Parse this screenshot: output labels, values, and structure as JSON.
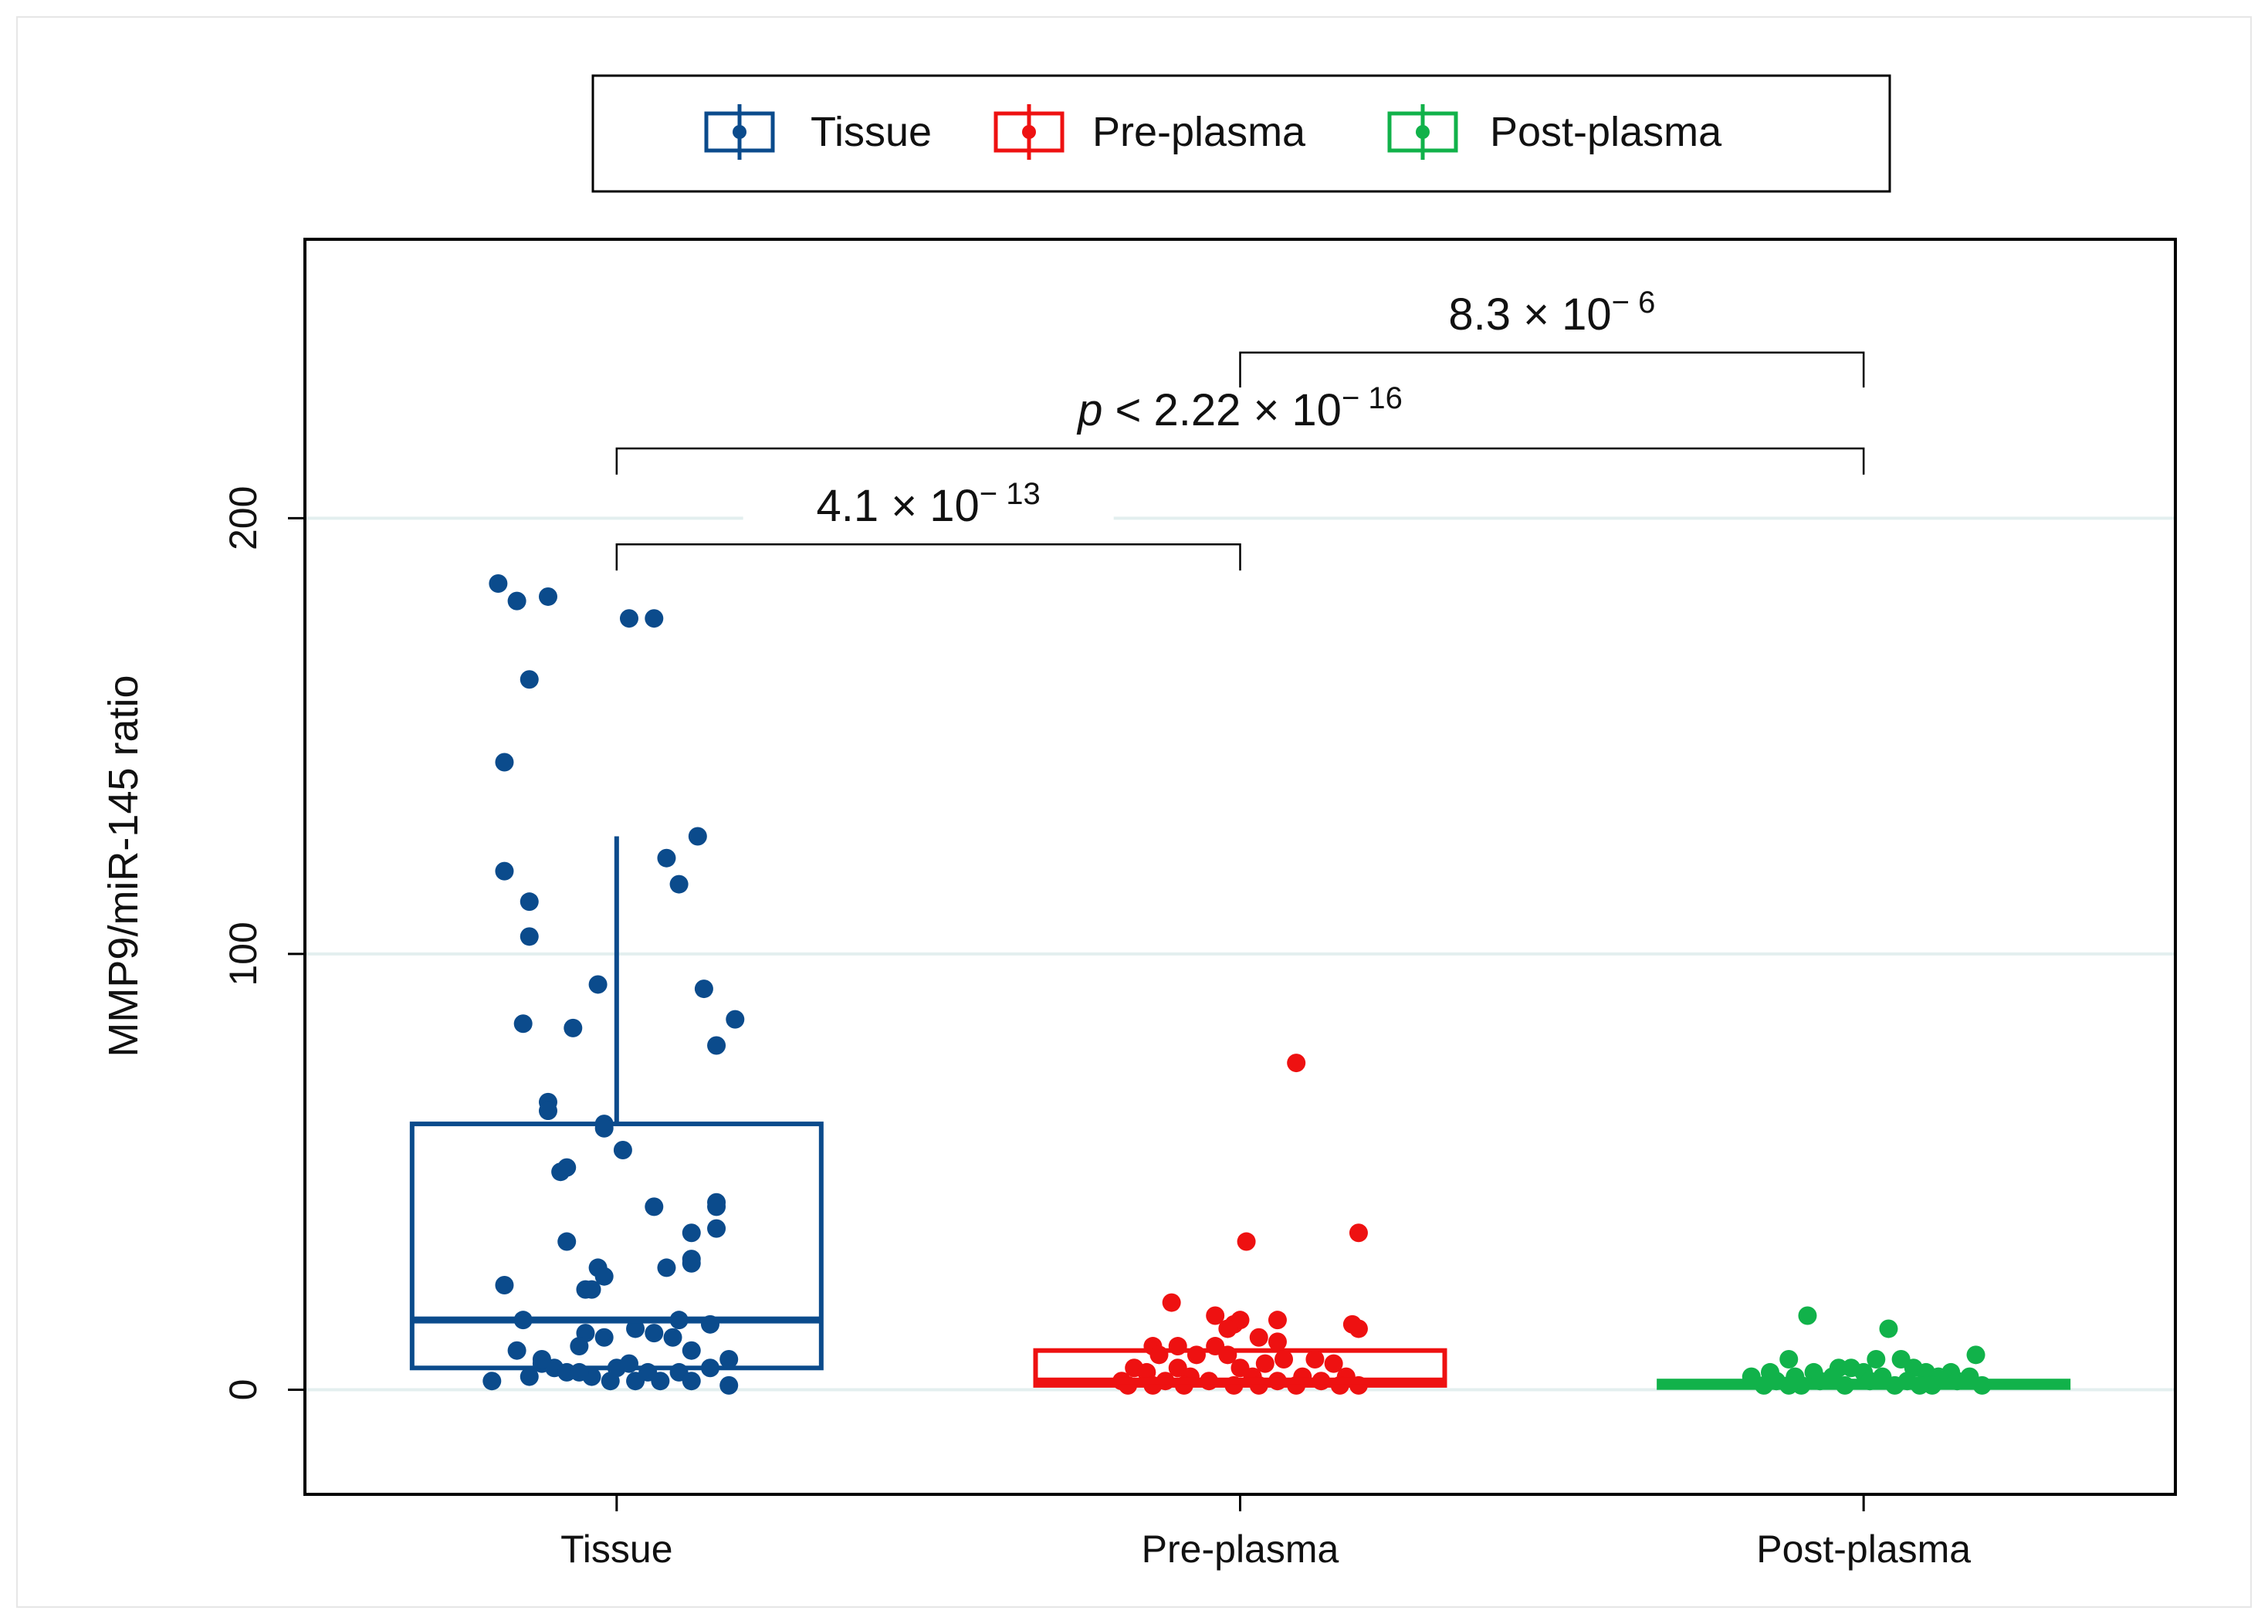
{
  "chart_data": {
    "type": "box",
    "title": "",
    "xlabel": "",
    "ylabel": "MMP9/miR-145 ratio",
    "ylim": [
      -24,
      264
    ],
    "yticks": [
      0,
      100,
      200
    ],
    "ytick_labels": [
      "0",
      "100",
      "200"
    ],
    "grid": true,
    "legend": {
      "placement": "top",
      "entries": [
        "Tissue",
        "Pre-plasma",
        "Post-plasma"
      ]
    },
    "colors": {
      "Tissue": "#0b4b8c",
      "Pre-plasma": "#ee1111",
      "Post-plasma": "#11b24a"
    },
    "categories": [
      "Tissue",
      "Pre-plasma",
      "Post-plasma"
    ],
    "series": [
      {
        "name": "Tissue",
        "box": {
          "whisker_low": 5,
          "q1": 5,
          "median": 16,
          "q3": 61,
          "whisker_high": 127
        },
        "points": [
          [
            -0.19,
            185
          ],
          [
            -0.16,
            181
          ],
          [
            -0.11,
            182
          ],
          [
            0.02,
            177
          ],
          [
            0.06,
            177
          ],
          [
            -0.14,
            163
          ],
          [
            -0.18,
            144
          ],
          [
            -0.18,
            119
          ],
          [
            -0.14,
            112
          ],
          [
            0.13,
            127
          ],
          [
            0.08,
            122
          ],
          [
            0.1,
            116
          ],
          [
            -0.14,
            104
          ],
          [
            -0.03,
            93
          ],
          [
            0.14,
            92
          ],
          [
            -0.15,
            84
          ],
          [
            -0.07,
            83
          ],
          [
            0.19,
            85
          ],
          [
            0.16,
            79
          ],
          [
            -0.11,
            66
          ],
          [
            -0.11,
            64
          ],
          [
            -0.02,
            61
          ],
          [
            -0.02,
            60
          ],
          [
            0.01,
            55
          ],
          [
            -0.08,
            51
          ],
          [
            -0.09,
            50
          ],
          [
            0.06,
            42
          ],
          [
            0.16,
            43
          ],
          [
            0.16,
            42
          ],
          [
            0.12,
            36
          ],
          [
            0.16,
            37
          ],
          [
            -0.08,
            34
          ],
          [
            0.12,
            30
          ],
          [
            0.12,
            29
          ],
          [
            0.08,
            28
          ],
          [
            -0.03,
            28
          ],
          [
            -0.02,
            26
          ],
          [
            -0.18,
            24
          ],
          [
            -0.05,
            23
          ],
          [
            -0.04,
            23
          ],
          [
            -0.15,
            16
          ],
          [
            0.1,
            16
          ],
          [
            0.15,
            15
          ],
          [
            0.03,
            14
          ],
          [
            0.06,
            13
          ],
          [
            -0.05,
            13
          ],
          [
            -0.02,
            12
          ],
          [
            0.09,
            12
          ],
          [
            -0.06,
            10
          ],
          [
            0.12,
            9
          ],
          [
            -0.16,
            9
          ],
          [
            -0.12,
            6
          ],
          [
            0.18,
            7
          ],
          [
            -0.1,
            5
          ],
          [
            -0.08,
            4
          ],
          [
            0.0,
            5
          ],
          [
            0.05,
            4
          ],
          [
            0.1,
            4
          ],
          [
            0.15,
            5
          ],
          [
            -0.14,
            3
          ],
          [
            -0.04,
            3
          ],
          [
            0.07,
            2
          ],
          [
            0.12,
            2
          ],
          [
            -0.2,
            2
          ],
          [
            -0.01,
            2
          ],
          [
            0.03,
            2
          ],
          [
            0.18,
            1
          ],
          [
            -0.12,
            7
          ],
          [
            0.02,
            6
          ],
          [
            -0.06,
            4
          ]
        ]
      },
      {
        "name": "Pre-plasma",
        "box": {
          "whisker_low": 0,
          "q1": 1,
          "median": 2,
          "q3": 9,
          "whisker_high": 9
        },
        "points": [
          [
            0.09,
            75
          ],
          [
            0.19,
            36
          ],
          [
            0.01,
            34
          ],
          [
            -0.11,
            20
          ],
          [
            -0.04,
            17
          ],
          [
            0.0,
            16
          ],
          [
            0.06,
            16
          ],
          [
            0.19,
            14
          ],
          [
            0.18,
            15
          ],
          [
            -0.01,
            15
          ],
          [
            -0.02,
            14
          ],
          [
            0.03,
            12
          ],
          [
            0.06,
            11
          ],
          [
            -0.14,
            10
          ],
          [
            -0.1,
            10
          ],
          [
            -0.04,
            10
          ],
          [
            -0.13,
            8
          ],
          [
            -0.07,
            8
          ],
          [
            -0.02,
            8
          ],
          [
            0.07,
            7
          ],
          [
            0.12,
            7
          ],
          [
            0.15,
            6
          ],
          [
            -0.17,
            5
          ],
          [
            -0.1,
            5
          ],
          [
            0.0,
            5
          ],
          [
            0.04,
            6
          ],
          [
            -0.15,
            4
          ],
          [
            -0.08,
            3
          ],
          [
            0.02,
            3
          ],
          [
            0.1,
            3
          ],
          [
            0.17,
            3
          ],
          [
            -0.19,
            2
          ],
          [
            -0.12,
            2
          ],
          [
            -0.05,
            2
          ],
          [
            0.06,
            2
          ],
          [
            0.13,
            2
          ],
          [
            -0.18,
            1
          ],
          [
            -0.09,
            1
          ],
          [
            -0.01,
            1
          ],
          [
            0.09,
            1
          ],
          [
            0.16,
            1
          ],
          [
            -0.14,
            1
          ],
          [
            0.03,
            1
          ],
          [
            0.19,
            1
          ]
        ]
      },
      {
        "name": "Post-plasma",
        "box": {
          "whisker_low": 0,
          "q1": 0.5,
          "median": 1.5,
          "q3": 2,
          "whisker_high": 3
        },
        "points": [
          [
            -0.09,
            17
          ],
          [
            0.04,
            14
          ],
          [
            -0.12,
            7
          ],
          [
            0.02,
            7
          ],
          [
            0.06,
            7
          ],
          [
            0.18,
            8
          ],
          [
            -0.04,
            5
          ],
          [
            -0.02,
            5
          ],
          [
            0.08,
            5
          ],
          [
            -0.15,
            4
          ],
          [
            -0.08,
            4
          ],
          [
            0.0,
            4
          ],
          [
            0.1,
            4
          ],
          [
            0.14,
            4
          ],
          [
            -0.18,
            3
          ],
          [
            -0.11,
            3
          ],
          [
            -0.05,
            3
          ],
          [
            0.03,
            3
          ],
          [
            0.12,
            3
          ],
          [
            0.17,
            3
          ],
          [
            -0.14,
            2
          ],
          [
            -0.07,
            2
          ],
          [
            0.01,
            2
          ],
          [
            0.07,
            2
          ],
          [
            0.15,
            2
          ],
          [
            -0.16,
            1
          ],
          [
            -0.1,
            1
          ],
          [
            -0.03,
            1
          ],
          [
            0.05,
            1
          ],
          [
            0.11,
            1
          ],
          [
            0.19,
            1
          ],
          [
            -0.12,
            1
          ],
          [
            0.09,
            1
          ]
        ]
      }
    ],
    "annotations": [
      {
        "from": "Pre-plasma",
        "to": "Post-plasma",
        "y": 238,
        "drop": 8,
        "prefix": "",
        "base": "8.3 × 10",
        "exponent": "− 6"
      },
      {
        "from": "Tissue",
        "to": "Post-plasma",
        "y": 216,
        "drop": 6,
        "prefix": "p",
        "base": " < 2.22 × 10",
        "exponent": "− 16"
      },
      {
        "from": "Tissue",
        "to": "Pre-plasma",
        "y": 194,
        "drop": 6,
        "prefix": "",
        "base": "4.1 × 10",
        "exponent": "− 13"
      }
    ]
  }
}
